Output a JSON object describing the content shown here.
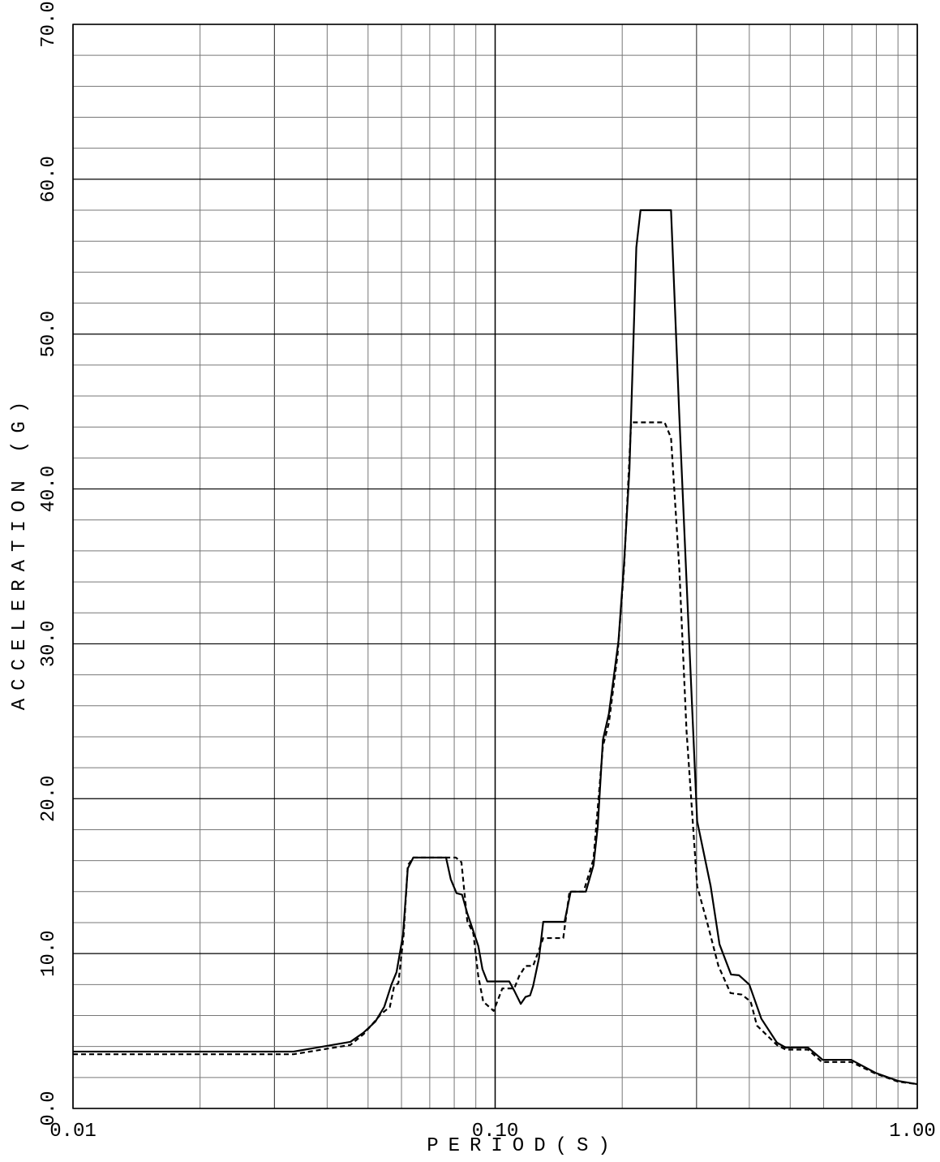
{
  "chart_data": {
    "type": "line",
    "x_label": "PERIOD(S)",
    "y_label": "ACCELERATION (G)",
    "xlog": true,
    "grid": true,
    "xlim": [
      0.01,
      1.0
    ],
    "ylim": [
      0,
      70
    ],
    "xticks": [
      0.01,
      {
        "value": 0.1,
        "label": "0.10"
      },
      {
        "value": 1.0,
        "label": "1.00"
      }
    ],
    "yticks": [
      {
        "value": 0,
        "label": "0.0"
      },
      {
        "value": 10,
        "label": "10.0"
      },
      {
        "value": 20,
        "label": "20.0"
      },
      {
        "value": 30,
        "label": "30.0"
      },
      {
        "value": 40,
        "label": "40.0"
      },
      {
        "value": 50,
        "label": "50.0"
      },
      {
        "value": 60,
        "label": "60.0"
      },
      {
        "value": 70,
        "label": "70.0"
      }
    ],
    "series": [
      {
        "color": "#000000",
        "dash": "solid",
        "x": [
          0.01,
          0.0333,
          0.0454,
          0.0488,
          0.052,
          0.0546,
          0.0568,
          0.0584,
          0.0605,
          0.0621,
          0.064,
          0.0765,
          0.0785,
          0.081,
          0.0835,
          0.0859,
          0.0884,
          0.0912,
          0.0933,
          0.0958,
          0.108,
          0.111,
          0.115,
          0.118,
          0.121,
          0.123,
          0.127,
          0.13,
          0.146,
          0.151,
          0.164,
          0.171,
          0.175,
          0.18,
          0.186,
          0.196,
          0.202,
          0.208,
          0.216,
          0.221,
          0.261,
          0.273,
          0.284,
          0.301,
          0.324,
          0.34,
          0.362,
          0.378,
          0.4,
          0.427,
          0.465,
          0.488,
          0.551,
          0.597,
          0.697,
          0.796,
          0.9,
          1.0
        ],
        "values": [
          3.67,
          3.67,
          4.3,
          4.9,
          5.6,
          6.55,
          8.0,
          8.8,
          11.2,
          15.5,
          16.2,
          16.2,
          14.8,
          13.9,
          13.8,
          12.6,
          11.6,
          10.5,
          9.0,
          8.2,
          8.2,
          7.6,
          6.75,
          7.2,
          7.3,
          7.9,
          9.7,
          12.05,
          12.05,
          14.0,
          14.0,
          15.7,
          18.2,
          23.8,
          25.5,
          30.2,
          35.2,
          41.2,
          55.6,
          58.0,
          58.0,
          44.8,
          34.1,
          18.55,
          14.35,
          10.6,
          8.65,
          8.6,
          8.0,
          5.8,
          4.25,
          3.93,
          3.93,
          3.14,
          3.14,
          2.3,
          1.78,
          1.57
        ]
      },
      {
        "color": "#000000",
        "dash": "dashed",
        "x": [
          0.01,
          0.0333,
          0.0454,
          0.0488,
          0.0537,
          0.0563,
          0.0576,
          0.059,
          0.0607,
          0.0621,
          0.064,
          0.0807,
          0.0832,
          0.0859,
          0.0888,
          0.0912,
          0.0937,
          0.0992,
          0.104,
          0.111,
          0.114,
          0.118,
          0.123,
          0.13,
          0.145,
          0.15,
          0.162,
          0.171,
          0.18,
          0.186,
          0.195,
          0.202,
          0.21,
          0.252,
          0.261,
          0.273,
          0.284,
          0.301,
          0.319,
          0.338,
          0.361,
          0.384,
          0.403,
          0.417,
          0.465,
          0.488,
          0.551,
          0.594,
          0.697,
          0.796,
          0.9,
          1.0
        ],
        "values": [
          3.5,
          3.5,
          4.1,
          4.8,
          6.1,
          6.55,
          7.85,
          8.1,
          11.2,
          15.7,
          16.2,
          16.2,
          15.9,
          12.1,
          11.3,
          8.55,
          6.9,
          6.3,
          7.75,
          7.75,
          8.55,
          9.2,
          9.2,
          11.0,
          11.0,
          14.0,
          14.0,
          16.1,
          23.4,
          24.9,
          29.3,
          34.9,
          44.3,
          44.3,
          43.3,
          34.9,
          24.4,
          14.35,
          11.85,
          9.2,
          7.45,
          7.35,
          6.9,
          5.35,
          4.1,
          3.8,
          3.8,
          3.0,
          3.0,
          2.25,
          1.73,
          1.57
        ]
      }
    ]
  }
}
